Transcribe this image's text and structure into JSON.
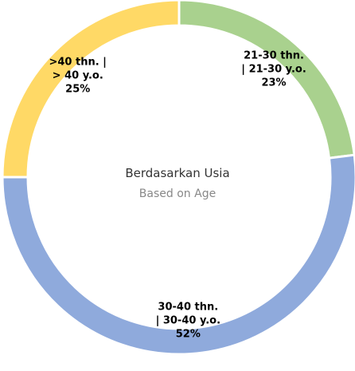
{
  "chart_data": {
    "type": "donut",
    "title": "Berdasarkan Usia",
    "subtitle": "Based on Age",
    "categories": [
      "21-30 thn. | 21-30 y.o.",
      "30-40 thn. | 30-40 y.o.",
      ">40 thn. | > 40 y.o."
    ],
    "values": [
      23,
      52,
      25
    ],
    "value_labels": [
      "23%",
      "52%",
      "25%"
    ],
    "colors": [
      "#a9d18e",
      "#8faadc",
      "#ffd966"
    ]
  }
}
